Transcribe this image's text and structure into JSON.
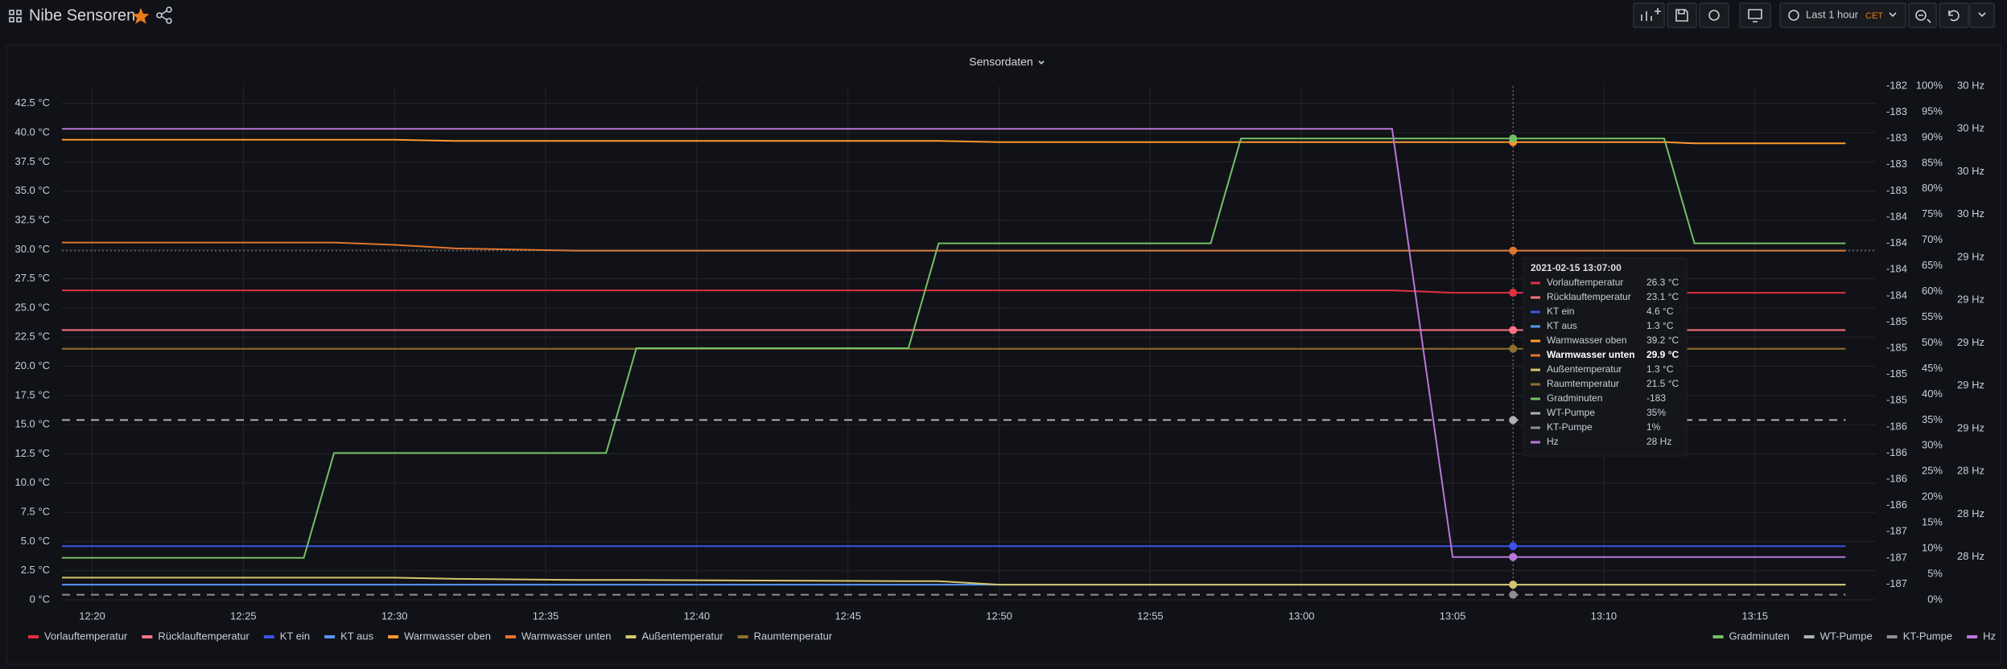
{
  "header": {
    "title": "Nibe Sensoren",
    "time_range": "Last 1 hour",
    "timezone": "CET"
  },
  "chart_data": {
    "type": "line",
    "title": "Sensordaten",
    "x": [
      "12:19",
      "12:27",
      "12:28",
      "12:30",
      "12:32",
      "12:36",
      "12:37",
      "12:38",
      "12:47",
      "12:48",
      "12:50",
      "12:57",
      "12:58",
      "13:03",
      "13:05",
      "13:07",
      "13:12",
      "13:13",
      "13:18"
    ],
    "xlim": [
      "12:19",
      "13:19"
    ],
    "xticks": [
      "12:20",
      "12:25",
      "12:30",
      "12:35",
      "12:40",
      "12:45",
      "12:50",
      "12:55",
      "13:00",
      "13:05",
      "13:10",
      "13:15"
    ],
    "ylim": [
      0,
      44
    ],
    "yticks": [
      {
        "value": 0,
        "label": "0 °C"
      },
      {
        "value": 2.5,
        "label": "2.5 °C"
      },
      {
        "value": 5,
        "label": "5.0 °C"
      },
      {
        "value": 7.5,
        "label": "7.5 °C"
      },
      {
        "value": 10,
        "label": "10.0 °C"
      },
      {
        "value": 12.5,
        "label": "12.5 °C"
      },
      {
        "value": 15,
        "label": "15.0 °C"
      },
      {
        "value": 17.5,
        "label": "17.5 °C"
      },
      {
        "value": 20,
        "label": "20.0 °C"
      },
      {
        "value": 22.5,
        "label": "22.5 °C"
      },
      {
        "value": 25,
        "label": "25.0 °C"
      },
      {
        "value": 27.5,
        "label": "27.5 °C"
      },
      {
        "value": 30,
        "label": "30.0 °C"
      },
      {
        "value": 32.5,
        "label": "32.5 °C"
      },
      {
        "value": 35,
        "label": "35.0 °C"
      },
      {
        "value": 37.5,
        "label": "37.5 °C"
      },
      {
        "value": 40,
        "label": "40.0 °C"
      },
      {
        "value": 42.5,
        "label": "42.5 °C"
      }
    ],
    "y2lim": [
      -187.4,
      -182.5
    ],
    "y2ticks": [
      {
        "value": -182.5,
        "label": "-182"
      },
      {
        "value": -182.75,
        "label": "-183"
      },
      {
        "value": -183,
        "label": "-183"
      },
      {
        "value": -183.25,
        "label": "-183"
      },
      {
        "value": -183.5,
        "label": "-183"
      },
      {
        "value": -183.75,
        "label": "-184"
      },
      {
        "value": -184,
        "label": "-184"
      },
      {
        "value": -184.25,
        "label": "-184"
      },
      {
        "value": -184.5,
        "label": "-184"
      },
      {
        "value": -184.75,
        "label": "-185"
      },
      {
        "value": -185,
        "label": "-185"
      },
      {
        "value": -185.25,
        "label": "-185"
      },
      {
        "value": -185.5,
        "label": "-185"
      },
      {
        "value": -185.75,
        "label": "-186"
      },
      {
        "value": -186,
        "label": "-186"
      },
      {
        "value": -186.25,
        "label": "-186"
      },
      {
        "value": -186.5,
        "label": "-186"
      },
      {
        "value": -186.75,
        "label": "-187"
      },
      {
        "value": -187,
        "label": "-187"
      },
      {
        "value": -187.25,
        "label": "-187"
      }
    ],
    "y3lim": [
      0,
      100
    ],
    "y3ticks": [
      {
        "value": 0,
        "label": "0%"
      },
      {
        "value": 5,
        "label": "5%"
      },
      {
        "value": 10,
        "label": "10%"
      },
      {
        "value": 15,
        "label": "15%"
      },
      {
        "value": 20,
        "label": "20%"
      },
      {
        "value": 25,
        "label": "25%"
      },
      {
        "value": 30,
        "label": "30%"
      },
      {
        "value": 35,
        "label": "35%"
      },
      {
        "value": 40,
        "label": "40%"
      },
      {
        "value": 45,
        "label": "45%"
      },
      {
        "value": 50,
        "label": "50%"
      },
      {
        "value": 55,
        "label": "55%"
      },
      {
        "value": 60,
        "label": "60%"
      },
      {
        "value": 65,
        "label": "65%"
      },
      {
        "value": 70,
        "label": "70%"
      },
      {
        "value": 75,
        "label": "75%"
      },
      {
        "value": 80,
        "label": "80%"
      },
      {
        "value": 85,
        "label": "85%"
      },
      {
        "value": 90,
        "label": "90%"
      },
      {
        "value": 95,
        "label": "95%"
      },
      {
        "value": 100,
        "label": "100%"
      }
    ],
    "y4lim": [
      27.8,
      30.2
    ],
    "y4ticks": [
      {
        "value": 28,
        "label": "28 Hz"
      },
      {
        "value": 28.2,
        "label": "28 Hz"
      },
      {
        "value": 28.4,
        "label": "28 Hz"
      },
      {
        "value": 28.6,
        "label": "29 Hz"
      },
      {
        "value": 28.8,
        "label": "29 Hz"
      },
      {
        "value": 29,
        "label": "29 Hz"
      },
      {
        "value": 29.2,
        "label": "29 Hz"
      },
      {
        "value": 29.4,
        "label": "29 Hz"
      },
      {
        "value": 29.6,
        "label": "30 Hz"
      },
      {
        "value": 29.8,
        "label": "30 Hz"
      },
      {
        "value": 30,
        "label": "30 Hz"
      },
      {
        "value": 30.2,
        "label": "30 Hz"
      }
    ],
    "grid": true,
    "series": [
      {
        "name": "Vorlauftemperatur",
        "color": "#e02f44",
        "axis": "y",
        "values": [
          26.5,
          26.5,
          26.5,
          26.5,
          26.5,
          26.5,
          26.5,
          26.5,
          26.5,
          26.5,
          26.5,
          26.5,
          26.5,
          26.5,
          26.3,
          26.3,
          26.3,
          26.3,
          26.3
        ]
      },
      {
        "name": "Rücklauftemperatur",
        "color": "#ff7383",
        "axis": "y",
        "values": [
          23.1,
          23.1,
          23.1,
          23.1,
          23.1,
          23.1,
          23.1,
          23.1,
          23.1,
          23.1,
          23.1,
          23.1,
          23.1,
          23.1,
          23.1,
          23.1,
          23.1,
          23.1,
          23.1
        ]
      },
      {
        "name": "KT ein",
        "color": "#3d52e8",
        "axis": "y",
        "values": [
          4.6,
          4.6,
          4.6,
          4.6,
          4.6,
          4.6,
          4.6,
          4.6,
          4.6,
          4.6,
          4.6,
          4.6,
          4.6,
          4.6,
          4.6,
          4.6,
          4.6,
          4.6,
          4.6
        ]
      },
      {
        "name": "KT aus",
        "color": "#5794f2",
        "axis": "y",
        "values": [
          1.3,
          1.3,
          1.3,
          1.3,
          1.3,
          1.3,
          1.3,
          1.3,
          1.3,
          1.3,
          1.3,
          1.3,
          1.3,
          1.3,
          1.3,
          1.3,
          1.3,
          1.3,
          1.3
        ]
      },
      {
        "name": "Warmwasser oben",
        "color": "#ff9830",
        "axis": "y",
        "values": [
          39.4,
          39.4,
          39.4,
          39.4,
          39.3,
          39.3,
          39.3,
          39.3,
          39.3,
          39.3,
          39.2,
          39.2,
          39.2,
          39.2,
          39.2,
          39.2,
          39.2,
          39.1,
          39.1
        ]
      },
      {
        "name": "Warmwasser unten",
        "color": "#e0752d",
        "axis": "y",
        "values": [
          30.6,
          30.6,
          30.6,
          30.4,
          30.1,
          29.9,
          29.9,
          29.9,
          29.9,
          29.9,
          29.9,
          29.9,
          29.9,
          29.9,
          29.9,
          29.9,
          29.9,
          29.9,
          29.9
        ]
      },
      {
        "name": "Außentemperatur",
        "color": "#d4c56e",
        "axis": "y",
        "values": [
          1.9,
          1.9,
          1.9,
          1.9,
          1.8,
          1.7,
          1.7,
          1.7,
          1.6,
          1.6,
          1.3,
          1.3,
          1.3,
          1.3,
          1.3,
          1.3,
          1.3,
          1.3,
          1.3
        ]
      },
      {
        "name": "Raumtemperatur",
        "color": "#8f6f2e",
        "axis": "y",
        "values": [
          21.5,
          21.5,
          21.5,
          21.5,
          21.5,
          21.5,
          21.5,
          21.5,
          21.5,
          21.5,
          21.5,
          21.5,
          21.5,
          21.5,
          21.5,
          21.5,
          21.5,
          21.5,
          21.5
        ]
      },
      {
        "name": "Gradminuten",
        "color": "#73bf69",
        "axis": "y2",
        "values": [
          -187,
          -187,
          -186,
          -186,
          -186,
          -186,
          -186,
          -185,
          -185,
          -184,
          -184,
          -184,
          -183,
          -183,
          -183,
          -183,
          -183,
          -184,
          -184
        ]
      },
      {
        "name": "WT-Pumpe",
        "color": "#b0b0b0",
        "axis": "y3",
        "dashed": true,
        "values": [
          35,
          35,
          35,
          35,
          35,
          35,
          35,
          35,
          35,
          35,
          35,
          35,
          35,
          35,
          35,
          35,
          35,
          35,
          35
        ]
      },
      {
        "name": "KT-Pumpe",
        "color": "#8e8e8e",
        "axis": "y3",
        "dashed": true,
        "values": [
          1,
          1,
          1,
          1,
          1,
          1,
          1,
          1,
          1,
          1,
          1,
          1,
          1,
          1,
          1,
          1,
          1,
          1,
          1
        ]
      },
      {
        "name": "Hz",
        "color": "#b877d9",
        "axis": "y4",
        "values": [
          30,
          30,
          30,
          30,
          30,
          30,
          30,
          30,
          30,
          30,
          30,
          30,
          30,
          30,
          28,
          28,
          28,
          28,
          28
        ]
      }
    ],
    "tooltip": {
      "title": "2021-02-15 13:07:00",
      "value_labels": [
        "26.3 °C",
        "23.1 °C",
        "4.6 °C",
        "1.3 °C",
        "39.2 °C",
        "29.9 °C",
        "1.3 °C",
        "21.5 °C",
        "-183",
        "35%",
        "1%",
        "28 Hz"
      ]
    }
  }
}
